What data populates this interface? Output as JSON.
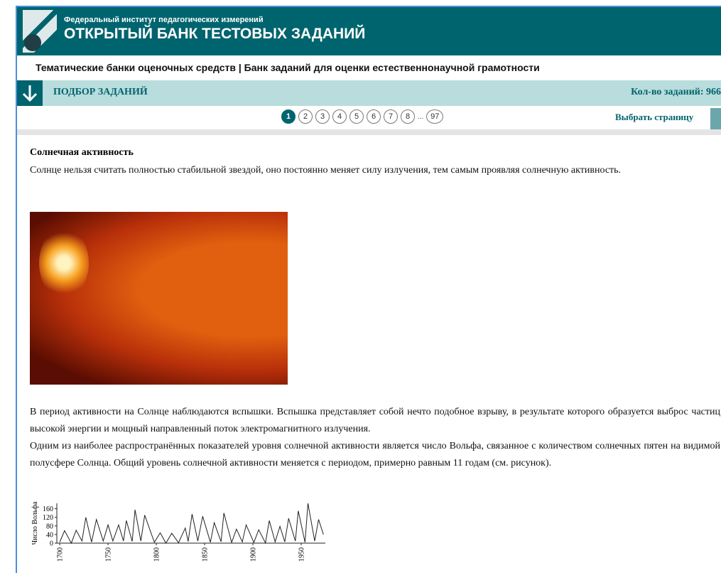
{
  "header": {
    "org": "Федеральный институт педагогических измерений",
    "title": "ОТКРЫТЫЙ БАНК ТЕСТОВЫХ ЗАДАНИЙ"
  },
  "breadcrumb": "Тематические банки оценочных средств | Банк заданий для оценки естественнонаучной грамотности",
  "toolbar": {
    "label": "ПОДБОР ЗАДАНИЙ",
    "count": "Кол-во заданий: 966"
  },
  "pagination": {
    "pages": [
      "1",
      "2",
      "3",
      "4",
      "5",
      "6",
      "7",
      "8"
    ],
    "ellipsis": "...",
    "last": "97",
    "select": "Выбрать страницу"
  },
  "article": {
    "title": "Солнечная активность",
    "intro": "Солнце нельзя считать полностью стабильной звездой, оно постоянно меняет силу излучения, тем самым проявляя солнечную активность.",
    "paragraphs": [
      "В период активности на Солнце наблюдаются вспышки. Вспышка представляет собой нечто подобное взрыву, в результате которого образуется выброс частиц высокой энергии и мощный направленный поток электромагнитного излучения.",
      "Одним из наиболее распространённых показателей уровня солнечной активности является число Вольфа, связанное с количеством солнечных пятен на видимой полусфере Солнца. Общий уровень солнечной активности меняется с периодом, примерно равным 11 годам (см. рисунок)."
    ]
  },
  "chart_data": {
    "type": "line",
    "y_label": "Число Вольфа",
    "x": [
      1700,
      1705,
      1712,
      1717,
      1723,
      1727,
      1733,
      1738,
      1745,
      1750,
      1755,
      1761,
      1766,
      1769,
      1775,
      1778,
      1784,
      1788,
      1798,
      1804,
      1810,
      1816,
      1823,
      1830,
      1833,
      1837,
      1843,
      1848,
      1856,
      1860,
      1867,
      1870,
      1878,
      1883,
      1889,
      1893,
      1901,
      1906,
      1913,
      1917,
      1923,
      1928,
      1933,
      1937,
      1944,
      1947,
      1954,
      1957,
      1964,
      1968,
      1973
    ],
    "values": [
      5,
      58,
      0,
      60,
      10,
      120,
      5,
      110,
      10,
      85,
      10,
      85,
      10,
      105,
      8,
      155,
      10,
      130,
      4,
      48,
      0,
      46,
      2,
      70,
      8,
      135,
      10,
      125,
      4,
      95,
      7,
      140,
      3,
      65,
      6,
      85,
      3,
      62,
      1,
      105,
      6,
      78,
      6,
      115,
      10,
      150,
      4,
      185,
      10,
      110,
      40
    ],
    "color": "#222222",
    "xlim": [
      1697,
      1975
    ],
    "ylim": [
      0,
      185
    ],
    "xticks": [
      1700,
      1750,
      1800,
      1850,
      1900,
      1950
    ],
    "yticks": [
      0,
      40,
      80,
      120,
      160
    ]
  }
}
